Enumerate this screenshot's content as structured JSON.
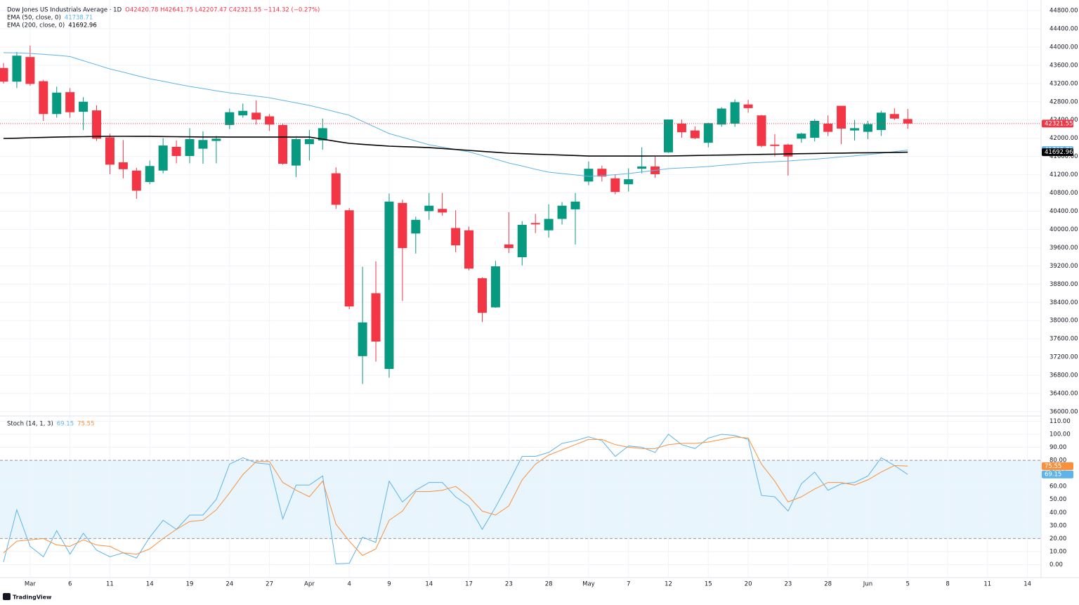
{
  "chart_data": [
    {
      "type": "candlestick",
      "title": "Dow Jones US Industrials Average · 1D",
      "ohlc_text": "O42420.78 H42641.75 L42207.47 C42321.55 −114.32 (−0.27%)",
      "up_color": "#089981",
      "down_color": "#f23645",
      "open": [
        43540,
        43240,
        43780,
        43250,
        42530,
        43010,
        42580,
        42610,
        42020,
        41470,
        41290,
        41040,
        41290,
        41810,
        41610,
        41770,
        41940,
        42290,
        42500,
        42560,
        42480,
        42290,
        41400,
        41870,
        41950,
        41230,
        40420,
        37220,
        38600,
        36940,
        40580,
        39910,
        40400,
        40450,
        40030,
        39980,
        38930,
        38290,
        39670,
        39390,
        40140,
        39980,
        40230,
        40440,
        41050,
        41330,
        41120,
        40990,
        41330,
        41380,
        41690,
        42320,
        42170,
        41900,
        42300,
        42320,
        42740,
        42500,
        41860,
        41860,
        41990,
        42010,
        42320,
        42710,
        42170,
        42140,
        42180,
        42530,
        42420.78
      ],
      "high": [
        43650,
        43890,
        44030,
        43280,
        43130,
        43100,
        42900,
        42720,
        42100,
        41960,
        41350,
        41510,
        42000,
        41950,
        42220,
        42150,
        42050,
        42650,
        42760,
        42830,
        42530,
        42320,
        42000,
        42180,
        42430,
        41360,
        40470,
        39180,
        39300,
        40790,
        40650,
        40280,
        40800,
        40800,
        40420,
        40060,
        38950,
        39310,
        40380,
        40180,
        40340,
        40550,
        40600,
        40800,
        41490,
        41400,
        41210,
        41340,
        41800,
        41600,
        42410,
        42410,
        42260,
        42340,
        42680,
        42850,
        42840,
        42510,
        42090,
        41880,
        42120,
        42420,
        42500,
        42710,
        42400,
        42380,
        42600,
        42660,
        42641.75
      ],
      "low": [
        43200,
        43100,
        43150,
        42380,
        42450,
        42450,
        42180,
        41940,
        41210,
        41120,
        40670,
        40990,
        41230,
        41450,
        41450,
        41440,
        41450,
        42200,
        42450,
        42300,
        42160,
        41420,
        41150,
        41510,
        41750,
        40450,
        38250,
        36610,
        37100,
        36750,
        38430,
        39470,
        40210,
        40300,
        39500,
        39100,
        37970,
        38280,
        39480,
        39210,
        39920,
        39820,
        40110,
        39670,
        40970,
        41050,
        40770,
        40830,
        41230,
        41130,
        41680,
        42010,
        41980,
        41800,
        42250,
        42250,
        42560,
        41800,
        41600,
        41180,
        41900,
        41930,
        42050,
        41870,
        41950,
        41980,
        42050,
        42400,
        42207.47
      ],
      "close": [
        43240,
        43810,
        43190,
        42530,
        43000,
        42570,
        42800,
        41990,
        41420,
        41320,
        40850,
        41390,
        41840,
        41610,
        41980,
        41960,
        41990,
        42570,
        42600,
        42410,
        42300,
        41440,
        41980,
        41980,
        42220,
        40540,
        38310,
        37960,
        37540,
        40610,
        39590,
        40210,
        40520,
        40370,
        39650,
        39140,
        38170,
        39190,
        39590,
        40100,
        40110,
        40230,
        40520,
        40610,
        41330,
        41160,
        40820,
        41100,
        41380,
        41210,
        42410,
        42130,
        42000,
        42330,
        42650,
        42790,
        42660,
        41830,
        41830,
        41600,
        42100,
        42380,
        42140,
        42210,
        42220,
        42310,
        42560,
        42430,
        42321.55
      ],
      "overlays": [
        {
          "name": "EMA (50, close, 0)",
          "color": "#5eb4e8",
          "values": [
            43875,
            43870,
            43860,
            43840,
            43820,
            43790,
            43700,
            43610,
            43520,
            43450,
            43375,
            43304,
            43250,
            43190,
            43135,
            43090,
            43040,
            42996,
            42960,
            42925,
            42888,
            42830,
            42775,
            42719,
            42650,
            42575,
            42503,
            42370,
            42235,
            42102,
            42020,
            41940,
            41856,
            41805,
            41750,
            41702,
            41620,
            41540,
            41455,
            41390,
            41320,
            41255,
            41225,
            41195,
            41163,
            41180,
            41200,
            41224,
            41260,
            41295,
            41332,
            41348,
            41362,
            41378,
            41405,
            41430,
            41455,
            41470,
            41485,
            41501,
            41520,
            41540,
            41563,
            41590,
            41615,
            41640,
            41670,
            41705,
            41738.71
          ]
        },
        {
          "name": "EMA (200, close, 0)",
          "color": "#000000",
          "values": [
            41995,
            42000,
            42010,
            42017,
            42024,
            42030,
            42034,
            42038,
            42041,
            42041,
            42040,
            42040,
            42037,
            42033,
            42030,
            42028,
            42027,
            42025,
            42025,
            42025,
            42025,
            42025,
            42025,
            42025,
            41980,
            41930,
            41887,
            41866,
            41845,
            41825,
            41815,
            41805,
            41794,
            41774,
            41753,
            41733,
            41712,
            41692,
            41671,
            41661,
            41650,
            41640,
            41630,
            41620,
            41609,
            41609,
            41609,
            41609,
            41609,
            41610,
            41610,
            41615,
            41620,
            41625,
            41630,
            41635,
            41640,
            41645,
            41650,
            41655,
            41660,
            41665,
            41670,
            41673,
            41677,
            41680,
            41684,
            41688,
            41692.96
          ]
        }
      ],
      "ylim": [
        35908,
        45031
      ],
      "yticks": [
        {
          "value": 36000,
          "label": "36000.00"
        },
        {
          "value": 36400,
          "label": "36400.00"
        },
        {
          "value": 36800,
          "label": "36800.00"
        },
        {
          "value": 37200,
          "label": "37200.00"
        },
        {
          "value": 37600,
          "label": "37600.00"
        },
        {
          "value": 38000,
          "label": "38000.00"
        },
        {
          "value": 38400,
          "label": "38400.00"
        },
        {
          "value": 38800,
          "label": "38800.00"
        },
        {
          "value": 39200,
          "label": "39200.00"
        },
        {
          "value": 39600,
          "label": "39600.00"
        },
        {
          "value": 40000,
          "label": "40000.00"
        },
        {
          "value": 40400,
          "label": "40400.00"
        },
        {
          "value": 40800,
          "label": "40800.00"
        },
        {
          "value": 41200,
          "label": "41200.00"
        },
        {
          "value": 41600,
          "label": "41600.00"
        },
        {
          "value": 42000,
          "label": "42000.00"
        },
        {
          "value": 42400,
          "label": "42400.00"
        },
        {
          "value": 42800,
          "label": "42800.00"
        },
        {
          "value": 43200,
          "label": "43200.00"
        },
        {
          "value": 43600,
          "label": "43600.00"
        },
        {
          "value": 44000,
          "label": "44000.00"
        },
        {
          "value": 44400,
          "label": "44400.00"
        },
        {
          "value": 44800,
          "label": "44800.00"
        }
      ],
      "grid": true
    },
    {
      "type": "line",
      "title": "Stoch (14, 1, 3)",
      "categories": [
        null,
        null,
        "Mar",
        null,
        null,
        "6",
        null,
        null,
        "11",
        null,
        null,
        "14",
        null,
        null,
        "19",
        null,
        null,
        "24",
        null,
        null,
        "27",
        null,
        null,
        "Apr",
        null,
        null,
        "4",
        null,
        null,
        "9",
        null,
        null,
        "14",
        null,
        null,
        "17",
        null,
        null,
        "23",
        null,
        null,
        "28",
        null,
        null,
        "May",
        null,
        null,
        "7",
        null,
        null,
        "12",
        null,
        null,
        "15",
        null,
        null,
        "20",
        null,
        null,
        "23",
        null,
        null,
        "28",
        null,
        null,
        "Jun",
        null,
        null,
        "5",
        null,
        null,
        "8",
        null,
        null,
        "11",
        null,
        null,
        "14"
      ],
      "series": [
        {
          "color": "#5eb4e8",
          "values": [
            2,
            42,
            14,
            6,
            26,
            8,
            24,
            11,
            6,
            9,
            5,
            21,
            34,
            27,
            38,
            38,
            50,
            77,
            82,
            78,
            77,
            35,
            61,
            61,
            68,
            0.5,
            1,
            21,
            17,
            64,
            48,
            57,
            63,
            63,
            52,
            45,
            27,
            44,
            63,
            83,
            83,
            86,
            93,
            95,
            98,
            95,
            83,
            91,
            90,
            86,
            100,
            92,
            89,
            97,
            100,
            99,
            96,
            53,
            52,
            41,
            62,
            71,
            57,
            62,
            63,
            68,
            82,
            76,
            69.15,
            null,
            null,
            null,
            null,
            null,
            null,
            null,
            null,
            null
          ]
        },
        {
          "color": "#f7913d",
          "values": [
            9,
            18,
            19,
            20,
            15,
            14,
            19,
            15,
            14,
            9,
            8,
            12,
            20,
            27,
            33,
            34,
            42,
            55,
            69,
            79,
            79,
            63,
            57,
            52,
            64,
            31,
            18,
            7,
            12,
            34,
            41,
            56,
            56,
            57,
            60,
            52,
            41,
            38,
            45,
            65,
            77,
            84,
            88,
            92,
            96,
            96,
            92,
            90,
            89,
            89,
            92,
            93,
            93,
            94,
            96,
            98,
            97,
            77,
            64,
            48,
            52,
            58,
            63,
            63,
            61,
            65,
            71,
            76,
            75.55,
            null,
            null,
            null,
            null,
            null,
            null,
            null,
            null,
            null
          ]
        }
      ],
      "bands": [
        20,
        80
      ],
      "band_color": "#e3f2fd",
      "ylim": [
        -10,
        114
      ],
      "yticks": [
        {
          "value": 0,
          "label": "0.00"
        },
        {
          "value": 10,
          "label": "10.00"
        },
        {
          "value": 20,
          "label": "20.00"
        },
        {
          "value": 30,
          "label": "30.00"
        },
        {
          "value": 40,
          "label": "40.00"
        },
        {
          "value": 50,
          "label": "50.00"
        },
        {
          "value": 60,
          "label": "60.00"
        },
        {
          "value": 70,
          "label": "70.00"
        },
        {
          "value": 80,
          "label": "80.00"
        },
        {
          "value": 90,
          "label": "90.00"
        },
        {
          "value": 100,
          "label": "100.00"
        },
        {
          "value": 110,
          "label": "110.00"
        }
      ],
      "grid": true
    }
  ],
  "footer": {
    "logo": "TradingView"
  }
}
